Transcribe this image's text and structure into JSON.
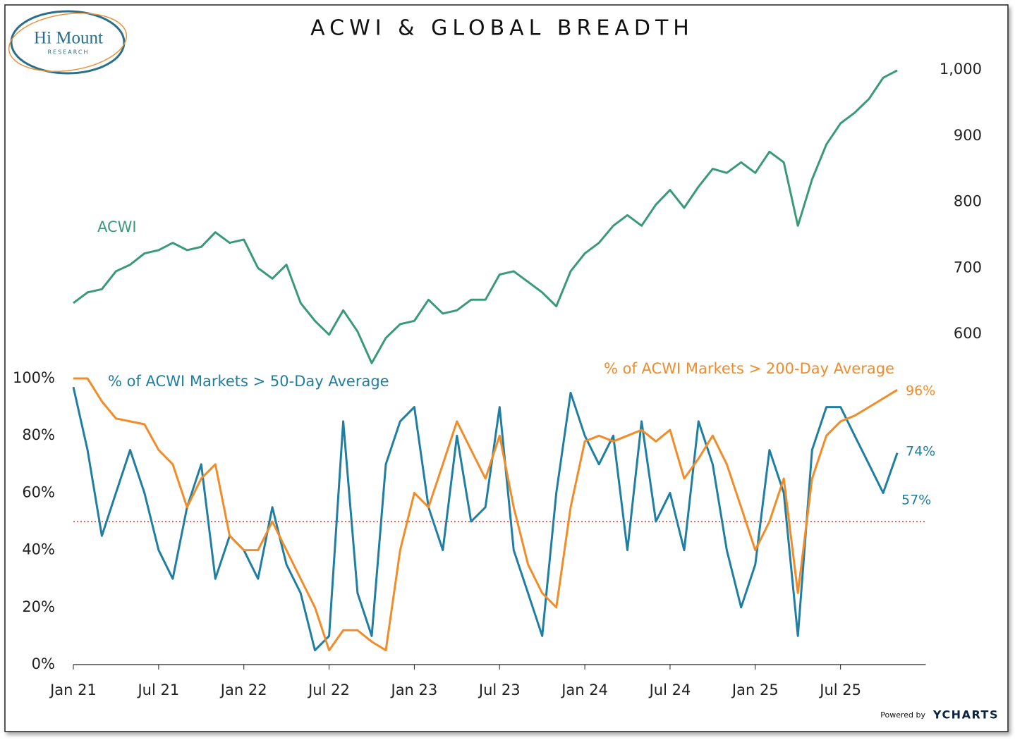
{
  "header": {
    "title": "ACWI & GLOBAL BREADTH",
    "logo": "Hi Mount",
    "logo_sub": "RESEARCH",
    "footer": "Powered by",
    "brand": "YCHARTS"
  },
  "chart_data": [
    {
      "type": "line",
      "x": [
        2021,
        2021.083,
        2021.167,
        2021.25,
        2021.333,
        2021.417,
        2021.5,
        2021.583,
        2021.667,
        2021.75,
        2021.833,
        2021.917,
        2022,
        2022.083,
        2022.167,
        2022.25,
        2022.333,
        2022.417,
        2022.5,
        2022.583,
        2022.667,
        2022.75,
        2022.833,
        2022.917,
        2023,
        2023.083,
        2023.167,
        2023.25,
        2023.333,
        2023.417,
        2023.5,
        2023.583,
        2023.667,
        2023.75,
        2023.833,
        2023.917,
        2024,
        2024.083,
        2024.167,
        2024.25,
        2024.333,
        2024.417,
        2024.5,
        2024.583,
        2024.667,
        2024.75,
        2024.833,
        2024.917,
        2025,
        2025.083,
        2025.167,
        2025.25,
        2025.333,
        2025.417,
        2025.5,
        2025.583,
        2025.667,
        2025.75,
        2025.833
      ],
      "series": [
        {
          "name": "ACWI",
          "color": "#3a9a78",
          "values": [
            647,
            663,
            668,
            695,
            705,
            722,
            727,
            738,
            727,
            732,
            754,
            738,
            743,
            700,
            684,
            705,
            647,
            620,
            599,
            636,
            604,
            556,
            594,
            615,
            620,
            652,
            631,
            636,
            652,
            652,
            690,
            695,
            679,
            663,
            642,
            695,
            722,
            738,
            764,
            780,
            764,
            796,
            818,
            791,
            823,
            850,
            844,
            860,
            844,
            876,
            860,
            764,
            834,
            887,
            919,
            935,
            956,
            988,
            999
          ]
        }
      ],
      "xlim": [
        2021,
        2026
      ],
      "ylim": [
        560,
        1020
      ],
      "yticks": [
        600,
        700,
        800,
        900,
        {
          "value": 1000,
          "label": "1,000"
        }
      ]
    },
    {
      "type": "line",
      "x": [
        2021,
        2021.083,
        2021.167,
        2021.25,
        2021.333,
        2021.417,
        2021.5,
        2021.583,
        2021.667,
        2021.75,
        2021.833,
        2021.917,
        2022,
        2022.083,
        2022.167,
        2022.25,
        2022.333,
        2022.417,
        2022.5,
        2022.583,
        2022.667,
        2022.75,
        2022.833,
        2022.917,
        2023,
        2023.083,
        2023.167,
        2023.25,
        2023.333,
        2023.417,
        2023.5,
        2023.583,
        2023.667,
        2023.75,
        2023.833,
        2023.917,
        2024,
        2024.083,
        2024.167,
        2024.25,
        2024.333,
        2024.417,
        2024.5,
        2024.583,
        2024.667,
        2024.75,
        2024.833,
        2024.917,
        2025,
        2025.083,
        2025.167,
        2025.25,
        2025.333,
        2025.417,
        2025.5,
        2025.583,
        2025.667,
        2025.75,
        2025.833
      ],
      "series": [
        {
          "name": "% of ACWI Markets > 50-Day Average",
          "color": "#1f7ea1",
          "values": [
            97,
            75,
            45,
            60,
            75,
            60,
            40,
            30,
            55,
            70,
            30,
            45,
            40,
            30,
            55,
            35,
            25,
            5,
            10,
            85,
            25,
            10,
            70,
            85,
            90,
            55,
            40,
            80,
            50,
            55,
            90,
            40,
            25,
            10,
            60,
            95,
            80,
            70,
            80,
            40,
            85,
            50,
            60,
            40,
            85,
            70,
            40,
            20,
            35,
            75,
            60,
            10,
            75,
            90,
            90,
            80,
            70,
            60,
            74
          ]
        },
        {
          "name": "% of ACWI Markets > 200-Day Average",
          "color": "#f28c28",
          "values": [
            100,
            100,
            92,
            86,
            85,
            84,
            75,
            70,
            55,
            65,
            70,
            45,
            40,
            40,
            50,
            40,
            30,
            20,
            5,
            12,
            12,
            8,
            5,
            40,
            60,
            55,
            70,
            85,
            75,
            65,
            80,
            55,
            35,
            25,
            20,
            55,
            78,
            80,
            78,
            80,
            82,
            78,
            82,
            65,
            72,
            80,
            70,
            55,
            40,
            50,
            65,
            25,
            65,
            80,
            85,
            87,
            90,
            93,
            96
          ]
        }
      ],
      "hline": {
        "value": 50,
        "color": "#d9342b"
      },
      "annotations": [
        {
          "text": "96%",
          "color": "#f28c28"
        },
        {
          "text": "74%",
          "color": "#1f7ea1"
        },
        {
          "text": "57%",
          "color": "#1f7ea1"
        }
      ],
      "xlim": [
        2021,
        2026
      ],
      "ylim": [
        0,
        100
      ],
      "xticks": [
        {
          "value": 2021,
          "label": "Jan 21"
        },
        {
          "value": 2021.5,
          "label": "Jul 21"
        },
        {
          "value": 2022,
          "label": "Jan 22"
        },
        {
          "value": 2022.5,
          "label": "Jul 22"
        },
        {
          "value": 2023,
          "label": "Jan 23"
        },
        {
          "value": 2023.5,
          "label": "Jul 23"
        },
        {
          "value": 2024,
          "label": "Jan 24"
        },
        {
          "value": 2024.5,
          "label": "Jul 24"
        },
        {
          "value": 2025,
          "label": "Jan 25"
        },
        {
          "value": 2025.5,
          "label": "Jul 25"
        }
      ],
      "yticks": [
        {
          "value": 0,
          "label": "0%"
        },
        {
          "value": 20,
          "label": "20%"
        },
        {
          "value": 40,
          "label": "40%"
        },
        {
          "value": 60,
          "label": "60%"
        },
        {
          "value": 80,
          "label": "80%"
        },
        {
          "value": 100,
          "label": "100%"
        }
      ]
    }
  ]
}
